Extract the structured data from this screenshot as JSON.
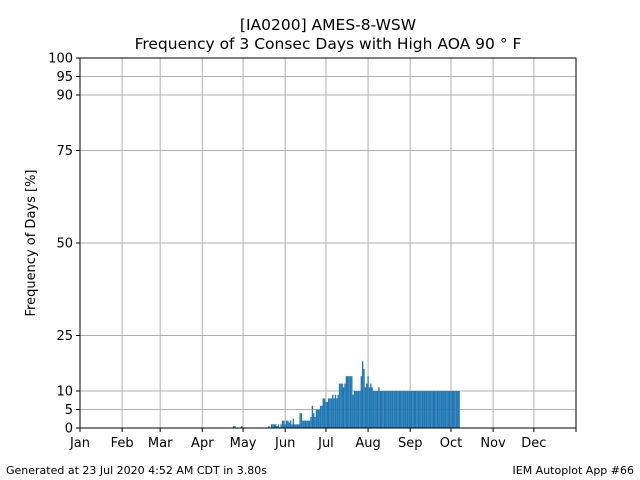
{
  "chart_data": {
    "type": "bar",
    "title": "[IA0200] AMES-8-WSW",
    "subtitle": "Frequency of 3 Consec Days with High AOA 90 ° F",
    "xlabel": "",
    "ylabel": "Frequency of Days [%]",
    "x_tick_labels": [
      "Jan",
      "Feb",
      "Mar",
      "Apr",
      "May",
      "Jun",
      "Jul",
      "Aug",
      "Sep",
      "Oct",
      "Nov",
      "Dec"
    ],
    "x_tick_doy": [
      1,
      32,
      60,
      91,
      121,
      152,
      182,
      213,
      244,
      274,
      305,
      335
    ],
    "xlim": [
      1,
      366
    ],
    "y_ticks": [
      0,
      5,
      10,
      25,
      50,
      75,
      90,
      95,
      100
    ],
    "ylim": [
      0,
      100
    ],
    "grid": true,
    "color": "#1f77b4",
    "x_units": "day of year",
    "days": [
      114,
      115,
      120,
      140,
      142,
      143,
      144,
      145,
      146,
      147,
      149,
      150,
      151,
      152,
      153,
      154,
      155,
      156,
      157,
      158,
      159,
      160,
      161,
      162,
      163,
      164,
      165,
      166,
      167,
      168,
      169,
      170,
      171,
      172,
      173,
      174,
      175,
      176,
      177,
      178,
      179,
      180,
      181,
      182,
      183,
      184,
      185,
      186,
      187,
      188,
      189,
      190,
      191,
      192,
      193,
      194,
      195,
      196,
      197,
      198,
      199,
      200,
      201,
      202,
      203,
      204,
      205,
      206,
      207,
      208,
      209,
      210,
      211,
      212,
      213,
      214,
      215,
      216,
      217,
      218,
      219,
      220,
      221,
      222,
      223,
      224,
      225,
      226,
      227,
      228,
      229,
      230,
      231,
      232,
      233,
      234,
      235,
      236,
      237,
      238,
      239,
      240,
      241,
      242,
      243,
      244,
      245,
      246,
      247,
      248,
      249,
      250,
      251,
      252,
      253,
      254,
      255,
      256,
      257,
      258,
      259,
      260,
      261,
      262,
      263,
      264,
      265,
      266,
      267,
      268,
      269,
      270,
      271,
      272,
      273,
      274,
      275,
      276,
      277,
      278,
      279,
      280
    ],
    "values": [
      0.5,
      0.5,
      0.5,
      0.5,
      1,
      1,
      1,
      1,
      0.5,
      1,
      1,
      2,
      2,
      1,
      2,
      2,
      1.5,
      2,
      1,
      2.5,
      1,
      1,
      1,
      1,
      4,
      4,
      2,
      2,
      2,
      2,
      2,
      2,
      3,
      6,
      4,
      3,
      5,
      5,
      5,
      6,
      6,
      8,
      8,
      7,
      7,
      8,
      8,
      8,
      9,
      8,
      9,
      8,
      9,
      12,
      12,
      12,
      11,
      12,
      14,
      14,
      14,
      14,
      14,
      9,
      10,
      10,
      10,
      10,
      10,
      14,
      18,
      16,
      11,
      12,
      14,
      11,
      12,
      11,
      10,
      10,
      10,
      10,
      11,
      10,
      10,
      10,
      10,
      10,
      10,
      10,
      10,
      10,
      10,
      10,
      10,
      10,
      10,
      10,
      10,
      10,
      10,
      10,
      10,
      10,
      10,
      10,
      10,
      10,
      10,
      10,
      10,
      10,
      10,
      10,
      10,
      10,
      10,
      10,
      10,
      10,
      10,
      10,
      10,
      10,
      10,
      10,
      10,
      10,
      10,
      10,
      10,
      10,
      10,
      10,
      10,
      10,
      10,
      10,
      10,
      10,
      10,
      10
    ]
  },
  "footer": {
    "left": "Generated at 23 Jul 2020 4:52 AM CDT in 3.80s",
    "right": "IEM Autoplot App #66"
  }
}
